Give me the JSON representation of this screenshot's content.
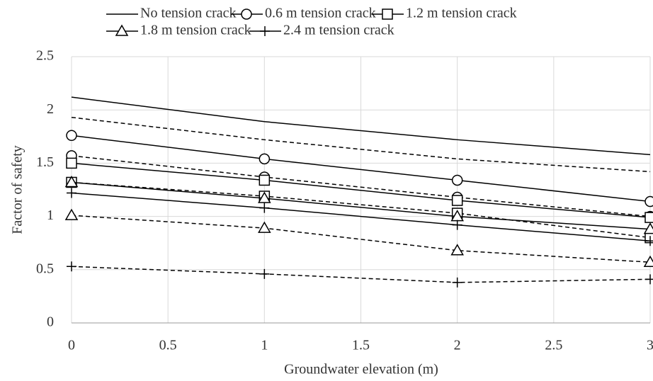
{
  "chart_data": {
    "type": "line",
    "x_label": "Groundwater elevation (m)",
    "y_label": "Factor of safety",
    "x": [
      0,
      1,
      2,
      3
    ],
    "xlim": [
      0,
      3
    ],
    "xticks": [
      0,
      0.5,
      1,
      1.5,
      2,
      2.5,
      3
    ],
    "ylim": [
      0,
      2.5
    ],
    "yticks": [
      0,
      0.5,
      1,
      1.5,
      2,
      2.5
    ],
    "grid": true,
    "series": [
      {
        "name": "No tension crack",
        "color": "#000000",
        "marker": "none",
        "values": [
          2.12,
          1.89,
          1.72,
          1.58
        ],
        "dashed_values": [
          1.93,
          1.72,
          1.54,
          1.42
        ]
      },
      {
        "name": "0.6 m tension crack",
        "color": "#000000",
        "marker": "circle",
        "values": [
          1.76,
          1.54,
          1.34,
          1.14
        ],
        "dashed_values": [
          1.57,
          1.37,
          1.18,
          1.0
        ]
      },
      {
        "name": "1.2 m tension crack",
        "color": "#000000",
        "marker": "square",
        "values": [
          1.5,
          1.34,
          1.15,
          0.99
        ],
        "dashed_values": [
          1.32,
          1.19,
          1.03,
          0.8
        ]
      },
      {
        "name": "1.8 m tension crack",
        "color": "#000000",
        "marker": "triangle",
        "values": [
          1.32,
          1.17,
          1.0,
          0.88
        ],
        "dashed_values": [
          1.01,
          0.89,
          0.68,
          0.57
        ]
      },
      {
        "name": "2.4 m tension crack",
        "color": "#000000",
        "marker": "plus",
        "values": [
          1.22,
          1.08,
          0.92,
          0.77
        ],
        "dashed_values": [
          0.53,
          0.46,
          0.38,
          0.41
        ]
      }
    ]
  }
}
